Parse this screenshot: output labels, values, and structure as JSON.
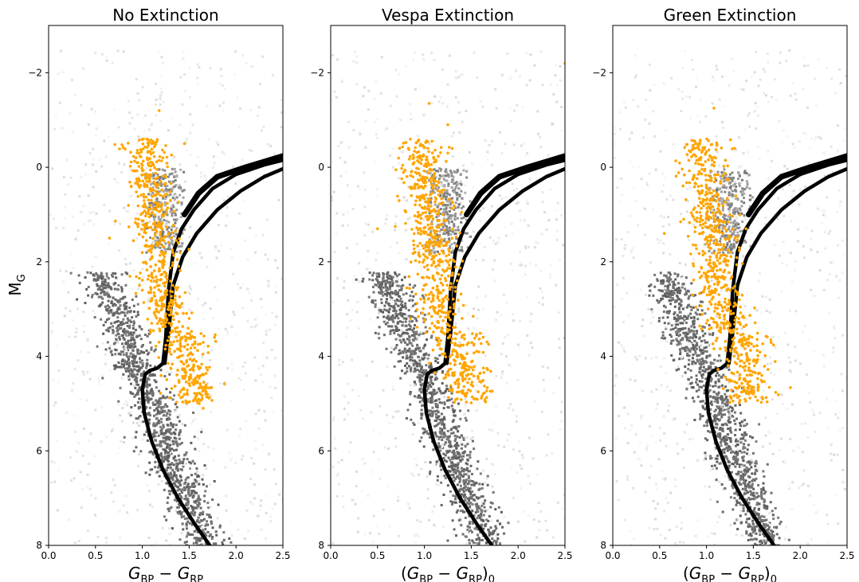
{
  "chart_data": [
    {
      "type": "scatter",
      "title": "No Extinction",
      "xlabel": "G_BP − G_RP",
      "ylabel": "M_G",
      "xlim": [
        0.0,
        2.5
      ],
      "ylim": [
        8,
        -3
      ],
      "x_ticks": [
        "0.0",
        "0.5",
        "1.0",
        "1.5",
        "2.0",
        "2.5"
      ],
      "y_ticks": [
        "−2",
        "0",
        "2",
        "4",
        "6",
        "8"
      ],
      "background": "grey 2D histogram of field stars",
      "series": [
        {
          "kind": "isochrone_curves",
          "color": "#000000"
        },
        {
          "kind": "points",
          "color": "#ffa500",
          "sample_points": [
            [
              1.18,
              -1.2
            ],
            [
              1.25,
              0.2
            ],
            [
              1.3,
              0.7
            ],
            [
              1.2,
              1.5
            ],
            [
              1.0,
              2.6
            ],
            [
              1.15,
              3.0
            ],
            [
              1.3,
              3.5
            ],
            [
              1.45,
              3.8
            ],
            [
              1.55,
              4.2
            ],
            [
              1.5,
              4.5
            ],
            [
              1.62,
              4.8
            ],
            [
              1.65,
              5.1
            ],
            [
              1.1,
              3.3
            ],
            [
              1.4,
              4.0
            ],
            [
              1.35,
              2.8
            ],
            [
              0.65,
              1.5
            ],
            [
              0.88,
              0.4
            ],
            [
              1.45,
              -0.5
            ],
            [
              1.2,
              2.0
            ],
            [
              1.5,
              3.2
            ]
          ]
        }
      ]
    },
    {
      "type": "scatter",
      "title": "Vespa Extinction",
      "xlabel": "(G_BP − G_RP)_0",
      "ylabel": "",
      "xlim": [
        0.0,
        2.5
      ],
      "ylim": [
        8,
        -3
      ],
      "x_ticks": [
        "0.0",
        "0.5",
        "1.0",
        "1.5",
        "2.0",
        "2.5"
      ],
      "y_ticks": [
        "−2",
        "0",
        "2",
        "4",
        "6",
        "8"
      ],
      "background": "grey 2D histogram of field stars",
      "series": [
        {
          "kind": "isochrone_curves",
          "color": "#000000"
        },
        {
          "kind": "points",
          "color": "#ffa500",
          "sample_points": [
            [
              1.05,
              -1.35
            ],
            [
              1.25,
              -0.9
            ],
            [
              2.5,
              -2.2
            ],
            [
              1.15,
              0.3
            ],
            [
              1.2,
              1.0
            ],
            [
              1.0,
              2.5
            ],
            [
              1.1,
              3.0
            ],
            [
              1.2,
              3.5
            ],
            [
              1.3,
              3.9
            ],
            [
              1.45,
              4.2
            ],
            [
              1.5,
              4.6
            ],
            [
              1.55,
              4.9
            ],
            [
              0.9,
              1.8
            ],
            [
              0.5,
              1.3
            ],
            [
              1.35,
              2.4
            ],
            [
              0.85,
              3.2
            ],
            [
              1.4,
              3.6
            ],
            [
              1.25,
              -0.3
            ],
            [
              1.1,
              2.0
            ],
            [
              1.3,
              4.4
            ]
          ]
        }
      ]
    },
    {
      "type": "scatter",
      "title": "Green Extinction",
      "xlabel": "(G_BP − G_RP)_0",
      "ylabel": "",
      "xlim": [
        0.0,
        2.5
      ],
      "ylim": [
        8,
        -3
      ],
      "x_ticks": [
        "0.0",
        "0.5",
        "1.0",
        "1.5",
        "2.0",
        "2.5"
      ],
      "y_ticks": [
        "−2",
        "0",
        "2",
        "4",
        "6",
        "8"
      ],
      "background": "grey 2D histogram of field stars",
      "series": [
        {
          "kind": "isochrone_curves",
          "color": "#000000"
        },
        {
          "kind": "points",
          "color": "#ffa500",
          "sample_points": [
            [
              1.08,
              -1.25
            ],
            [
              1.3,
              -0.4
            ],
            [
              1.15,
              0.3
            ],
            [
              1.25,
              1.0
            ],
            [
              0.55,
              1.4
            ],
            [
              0.95,
              2.3
            ],
            [
              1.05,
              2.9
            ],
            [
              1.15,
              3.4
            ],
            [
              1.3,
              3.9
            ],
            [
              1.45,
              4.3
            ],
            [
              1.55,
              4.6
            ],
            [
              1.6,
              4.9
            ],
            [
              1.2,
              2.0
            ],
            [
              1.4,
              3.6
            ],
            [
              0.85,
              2.7
            ],
            [
              1.35,
              1.7
            ],
            [
              1.5,
              4.1
            ],
            [
              1.0,
              3.3
            ],
            [
              1.25,
              4.5
            ],
            [
              1.45,
              4.8
            ]
          ]
        }
      ]
    }
  ]
}
